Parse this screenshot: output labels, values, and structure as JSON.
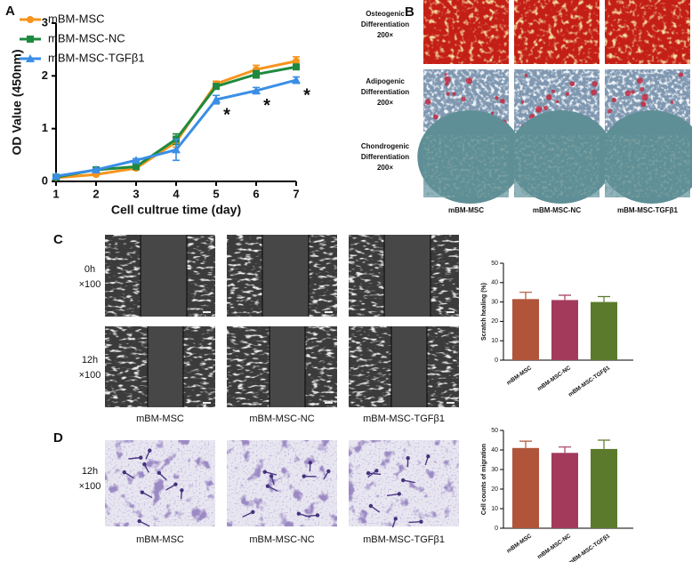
{
  "panels": [
    "A",
    "B",
    "C",
    "D"
  ],
  "panel_b": {
    "rows": [
      [
        "Osteogenic",
        "Differentiation",
        "200×"
      ],
      [
        "Adipogenic",
        "Differentiation",
        "200×"
      ],
      [
        "Chondrogenic",
        "Differentiation",
        "200×"
      ]
    ],
    "columns": [
      "mBM-MSC",
      "mBM-MSC-NC",
      "mBM-MSC-TGFβ1"
    ]
  },
  "panel_c": {
    "rows": [
      [
        "0h",
        "×100"
      ],
      [
        "12h",
        "×100"
      ]
    ],
    "columns": [
      "mBM-MSC",
      "mBM-MSC-NC",
      "mBM-MSC-TGFβ1"
    ]
  },
  "panel_d": {
    "rows": [
      [
        "12h",
        "×100"
      ]
    ],
    "columns": [
      "mBM-MSC",
      "mBM-MSC-NC",
      "mBM-MSC-TGFβ1"
    ]
  },
  "chart_data": [
    {
      "type": "line",
      "xlabel": "Cell cultrue time (day)",
      "ylabel": "OD Value (450nm)",
      "x": [
        1,
        2,
        3,
        4,
        5,
        6,
        7
      ],
      "xlim": [
        1,
        7
      ],
      "xticks": [
        1,
        2,
        3,
        4,
        5,
        6,
        7
      ],
      "ylim": [
        0,
        3
      ],
      "yticks": [
        0,
        1,
        2,
        3
      ],
      "legend": "upper left",
      "series": [
        {
          "name": "mBM-MSC",
          "color": "#f7941d",
          "marker": "circle",
          "values": [
            0.07,
            0.13,
            0.25,
            0.75,
            1.85,
            2.12,
            2.28
          ],
          "errors": [
            0.02,
            0.02,
            0.03,
            0.1,
            0.05,
            0.08,
            0.08
          ]
        },
        {
          "name": "mBM-MSC-NC",
          "color": "#1f8a3f",
          "marker": "square",
          "values": [
            0.08,
            0.22,
            0.28,
            0.8,
            1.8,
            2.03,
            2.17
          ],
          "errors": [
            0.02,
            0.03,
            0.03,
            0.1,
            0.05,
            0.07,
            0.05
          ]
        },
        {
          "name": "mBM-MSC-TGFβ1",
          "color": "#3a8ee6",
          "marker": "triangle",
          "values": [
            0.1,
            0.22,
            0.4,
            0.6,
            1.55,
            1.72,
            1.92
          ],
          "errors": [
            0.02,
            0.03,
            0.03,
            0.2,
            0.08,
            0.06,
            0.06
          ]
        }
      ],
      "annotations": [
        "*",
        "*",
        "*"
      ]
    },
    {
      "type": "bar",
      "ylabel": "Scratch healing (%)",
      "categories": [
        "mBM-MSC",
        "mBM-MSC-NC",
        "mBM-MSC-TGFβ1"
      ],
      "values": [
        31.5,
        31,
        30
      ],
      "errors": [
        3.5,
        2.5,
        2.8
      ],
      "colors": [
        "#b0553a",
        "#a33a5c",
        "#5b7a2b"
      ],
      "ylim": [
        0,
        50
      ],
      "yticks": [
        0,
        10,
        20,
        30,
        40,
        50
      ]
    },
    {
      "type": "bar",
      "ylabel": "Cell counts of migration",
      "categories": [
        "mBM-MSC",
        "mBM-MSC-NC",
        "mBM-MSC-TGFβ1"
      ],
      "values": [
        41,
        38.5,
        40.5
      ],
      "errors": [
        3.5,
        3,
        4.5
      ],
      "colors": [
        "#b0553a",
        "#a33a5c",
        "#5b7a2b"
      ],
      "ylim": [
        0,
        50
      ],
      "yticks": [
        0,
        10,
        20,
        30,
        40,
        50
      ]
    }
  ]
}
